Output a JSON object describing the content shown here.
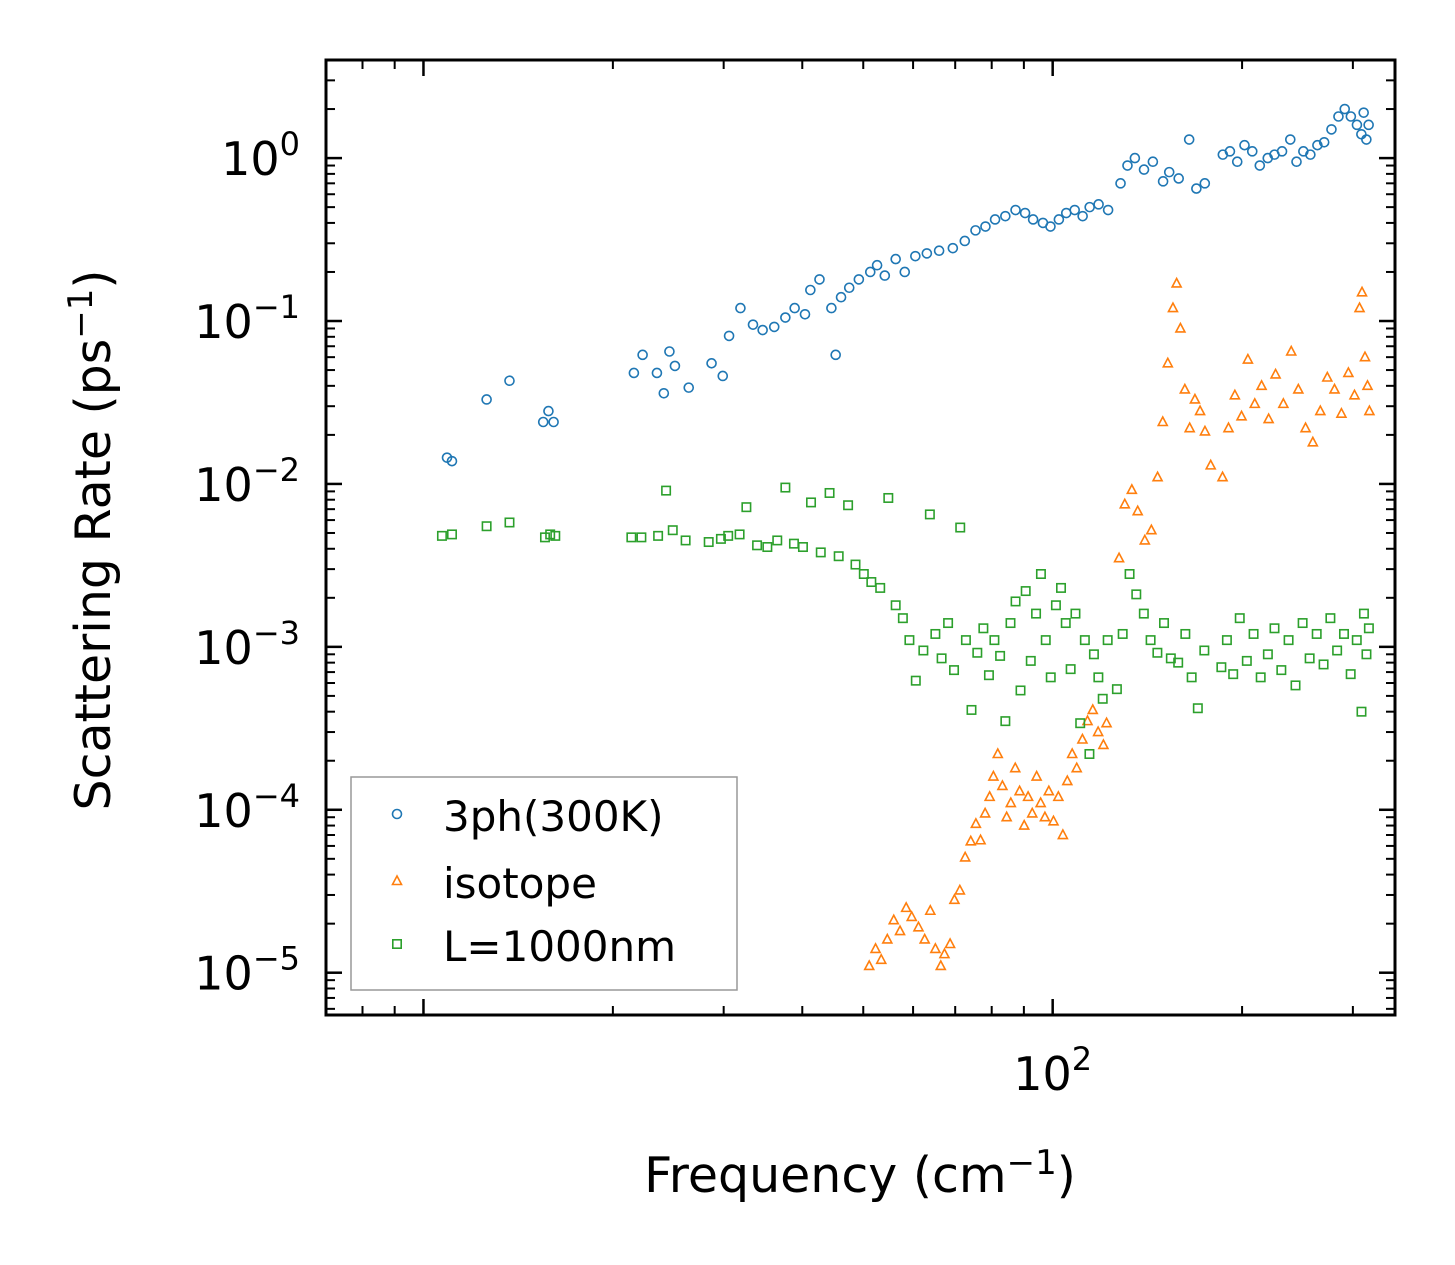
{
  "chart_data": {
    "type": "scatter",
    "xscale": "log",
    "yscale": "log",
    "xlabel": "Frequency (cm",
    "xlabel_sup": "−1",
    "xlabel_end": ")",
    "ylabel": "Scattering Rate (ps",
    "ylabel_sup": "−1",
    "ylabel_end": ")",
    "xlim": [
      7,
      350
    ],
    "ylim": [
      5.5e-06,
      4
    ],
    "x_ticks": [
      {
        "value": 100,
        "base": "10",
        "exp": "2"
      }
    ],
    "y_ticks": [
      {
        "value": 1,
        "base": "10",
        "exp": "0"
      },
      {
        "value": 0.1,
        "base": "10",
        "exp": "−1"
      },
      {
        "value": 0.01,
        "base": "10",
        "exp": "−2"
      },
      {
        "value": 0.001,
        "base": "10",
        "exp": "−3"
      },
      {
        "value": 0.0001,
        "base": "10",
        "exp": "−4"
      },
      {
        "value": 1e-05,
        "base": "10",
        "exp": "−5"
      }
    ],
    "legend_position": "lower-left",
    "series": [
      {
        "name": "3ph(300K)",
        "marker": "circle",
        "color": "#1f77b4",
        "points": [
          [
            10.9,
            0.0145
          ],
          [
            11.1,
            0.0138
          ],
          [
            12.6,
            0.033
          ],
          [
            13.7,
            0.043
          ],
          [
            15.5,
            0.024
          ],
          [
            15.8,
            0.028
          ],
          [
            16.1,
            0.024
          ],
          [
            21.6,
            0.048
          ],
          [
            22.3,
            0.062
          ],
          [
            23.5,
            0.048
          ],
          [
            24.1,
            0.036
          ],
          [
            24.6,
            0.065
          ],
          [
            25.1,
            0.053
          ],
          [
            26.4,
            0.039
          ],
          [
            28.7,
            0.055
          ],
          [
            29.9,
            0.046
          ],
          [
            30.6,
            0.081
          ],
          [
            31.9,
            0.12
          ],
          [
            33.4,
            0.095
          ],
          [
            34.6,
            0.088
          ],
          [
            36.1,
            0.092
          ],
          [
            37.6,
            0.105
          ],
          [
            38.9,
            0.12
          ],
          [
            40.4,
            0.11
          ],
          [
            41.2,
            0.155
          ],
          [
            42.6,
            0.18
          ],
          [
            44.5,
            0.12
          ],
          [
            45.2,
            0.062
          ],
          [
            46.1,
            0.14
          ],
          [
            47.5,
            0.16
          ],
          [
            49.2,
            0.18
          ],
          [
            51.3,
            0.2
          ],
          [
            52.6,
            0.22
          ],
          [
            54.1,
            0.19
          ],
          [
            56.3,
            0.24
          ],
          [
            58.2,
            0.2
          ],
          [
            60.5,
            0.25
          ],
          [
            63.1,
            0.26
          ],
          [
            66,
            0.27
          ],
          [
            69.4,
            0.28
          ],
          [
            72.5,
            0.31
          ],
          [
            75.4,
            0.36
          ],
          [
            78.2,
            0.38
          ],
          [
            81,
            0.42
          ],
          [
            84.1,
            0.44
          ],
          [
            87.3,
            0.48
          ],
          [
            90.4,
            0.46
          ],
          [
            93.1,
            0.42
          ],
          [
            96.5,
            0.4
          ],
          [
            99.2,
            0.38
          ],
          [
            102.3,
            0.42
          ],
          [
            105.1,
            0.46
          ],
          [
            108.4,
            0.48
          ],
          [
            111.6,
            0.44
          ],
          [
            114.5,
            0.5
          ],
          [
            118.3,
            0.52
          ],
          [
            122.5,
            0.48
          ],
          [
            128.2,
            0.7
          ],
          [
            131.5,
            0.9
          ],
          [
            135.1,
            1.0
          ],
          [
            139.7,
            0.85
          ],
          [
            144.3,
            0.95
          ],
          [
            149.8,
            0.72
          ],
          [
            153.2,
            0.82
          ],
          [
            158.6,
            0.75
          ],
          [
            164.8,
            1.3
          ],
          [
            169.2,
            0.65
          ],
          [
            174.5,
            0.7
          ],
          [
            186.4,
            1.05
          ],
          [
            191.3,
            1.1
          ],
          [
            196.5,
            0.95
          ],
          [
            201.8,
            1.2
          ],
          [
            207.6,
            1.1
          ],
          [
            213.4,
            0.9
          ],
          [
            219.7,
            1.0
          ],
          [
            225.2,
            1.05
          ],
          [
            231.5,
            1.1
          ],
          [
            238.6,
            1.3
          ],
          [
            244.1,
            0.95
          ],
          [
            250.3,
            1.1
          ],
          [
            256.8,
            1.05
          ],
          [
            263.5,
            1.2
          ],
          [
            270.1,
            1.25
          ],
          [
            277.4,
            1.5
          ],
          [
            284.6,
            1.8
          ],
          [
            291.2,
            2.0
          ],
          [
            297.8,
            1.8
          ],
          [
            304.5,
            1.6
          ],
          [
            309.5,
            1.4
          ],
          [
            312.1,
            1.9
          ],
          [
            315.2,
            1.3
          ],
          [
            317.8,
            1.6
          ]
        ]
      },
      {
        "name": "isotope",
        "marker": "triangle",
        "color": "#ff7f0e",
        "points": [
          [
            51.1,
            1.1e-05
          ],
          [
            52.3,
            1.4e-05
          ],
          [
            53.4,
            1.2e-05
          ],
          [
            54.6,
            1.6e-05
          ],
          [
            55.9,
            2.1e-05
          ],
          [
            57.2,
            1.8e-05
          ],
          [
            58.5,
            2.5e-05
          ],
          [
            59.7,
            2.2e-05
          ],
          [
            61.2,
            1.9e-05
          ],
          [
            62.6,
            1.6e-05
          ],
          [
            63.9,
            2.4e-05
          ],
          [
            65.1,
            1.4e-05
          ],
          [
            66.4,
            1.1e-05
          ],
          [
            67.3,
            1.3e-05
          ],
          [
            68.7,
            1.5e-05
          ],
          [
            69.8,
            2.8e-05
          ],
          [
            71.2,
            3.2e-05
          ],
          [
            72.6,
            5.1e-05
          ],
          [
            74.1,
            6.4e-05
          ],
          [
            75.5,
            8.2e-05
          ],
          [
            76.8,
            6.5e-05
          ],
          [
            78.1,
            9.5e-05
          ],
          [
            79.4,
            0.00012
          ],
          [
            80.5,
            0.00016
          ],
          [
            81.8,
            0.00022
          ],
          [
            83.2,
            0.00014
          ],
          [
            84.5,
            9e-05
          ],
          [
            85.8,
            0.00011
          ],
          [
            87.2,
            0.00018
          ],
          [
            88.6,
            0.00013
          ],
          [
            90.1,
            8e-05
          ],
          [
            91.4,
            0.00012
          ],
          [
            92.8,
            9.5e-05
          ],
          [
            94.3,
            0.00016
          ],
          [
            95.7,
            0.00011
          ],
          [
            97.2,
            9e-05
          ],
          [
            98.6,
            0.00013
          ],
          [
            100.3,
            8.5e-05
          ],
          [
            102.1,
            0.00012
          ],
          [
            103.8,
            7e-05
          ],
          [
            105.5,
            0.00015
          ],
          [
            107.4,
            0.00022
          ],
          [
            109.2,
            0.00018
          ],
          [
            111.5,
            0.00027
          ],
          [
            113.6,
            0.00035
          ],
          [
            115.8,
            0.00041
          ],
          [
            118.1,
            0.0003
          ],
          [
            120.4,
            0.00025
          ],
          [
            121.8,
            0.00034
          ],
          [
            127.5,
            0.0035
          ],
          [
            130.2,
            0.0075
          ],
          [
            133.6,
            0.0092
          ],
          [
            136.5,
            0.0068
          ],
          [
            140.1,
            0.0045
          ],
          [
            143.5,
            0.0052
          ],
          [
            146.8,
            0.011
          ],
          [
            149.6,
            0.024
          ],
          [
            152.4,
            0.055
          ],
          [
            155.3,
            0.12
          ],
          [
            157.4,
            0.17
          ],
          [
            159.6,
            0.09
          ],
          [
            162.2,
            0.038
          ],
          [
            165.1,
            0.022
          ],
          [
            168.3,
            0.033
          ],
          [
            171.5,
            0.028
          ],
          [
            174.6,
            0.021
          ],
          [
            178.3,
            0.013
          ],
          [
            186.2,
            0.011
          ],
          [
            190.3,
            0.022
          ],
          [
            194.8,
            0.035
          ],
          [
            199.6,
            0.026
          ],
          [
            204.3,
            0.058
          ],
          [
            209.5,
            0.031
          ],
          [
            214.8,
            0.04
          ],
          [
            220.4,
            0.025
          ],
          [
            226.1,
            0.047
          ],
          [
            232.6,
            0.031
          ],
          [
            239.4,
            0.065
          ],
          [
            245.7,
            0.038
          ],
          [
            252.3,
            0.022
          ],
          [
            259.1,
            0.018
          ],
          [
            266.3,
            0.028
          ],
          [
            273.2,
            0.045
          ],
          [
            280.5,
            0.038
          ],
          [
            287.7,
            0.027
          ],
          [
            295.1,
            0.048
          ],
          [
            301.8,
            0.035
          ],
          [
            307.4,
            0.12
          ],
          [
            310.2,
            0.15
          ],
          [
            313.6,
            0.06
          ],
          [
            316.5,
            0.04
          ],
          [
            318.7,
            0.028
          ]
        ]
      },
      {
        "name": "L=1000nm",
        "marker": "square",
        "color": "#2ca02c",
        "points": [
          [
            10.7,
            0.0048
          ],
          [
            11.1,
            0.0049
          ],
          [
            12.6,
            0.0055
          ],
          [
            13.7,
            0.0058
          ],
          [
            15.6,
            0.0047
          ],
          [
            15.9,
            0.0049
          ],
          [
            16.2,
            0.0048
          ],
          [
            21.4,
            0.0047
          ],
          [
            22.2,
            0.0047
          ],
          [
            23.6,
            0.0048
          ],
          [
            24.3,
            0.0091
          ],
          [
            24.9,
            0.0052
          ],
          [
            26.1,
            0.0045
          ],
          [
            28.4,
            0.0044
          ],
          [
            29.7,
            0.0046
          ],
          [
            30.5,
            0.0048
          ],
          [
            31.8,
            0.0049
          ],
          [
            32.6,
            0.0072
          ],
          [
            33.9,
            0.0042
          ],
          [
            35.2,
            0.0041
          ],
          [
            36.5,
            0.0045
          ],
          [
            37.6,
            0.0095
          ],
          [
            38.8,
            0.0043
          ],
          [
            40.1,
            0.0041
          ],
          [
            41.3,
            0.0077
          ],
          [
            42.8,
            0.0038
          ],
          [
            44.2,
            0.0088
          ],
          [
            45.7,
            0.0036
          ],
          [
            47.3,
            0.0074
          ],
          [
            48.6,
            0.0032
          ],
          [
            50.1,
            0.0028
          ],
          [
            51.5,
            0.0025
          ],
          [
            53.2,
            0.0023
          ],
          [
            54.8,
            0.0082
          ],
          [
            56.3,
            0.0018
          ],
          [
            57.8,
            0.0015
          ],
          [
            59.2,
            0.0011
          ],
          [
            60.6,
            0.00062
          ],
          [
            62.3,
            0.00095
          ],
          [
            63.8,
            0.0065
          ],
          [
            65.1,
            0.0012
          ],
          [
            66.6,
            0.00085
          ],
          [
            68.2,
            0.0014
          ],
          [
            69.7,
            0.00072
          ],
          [
            71.3,
            0.0054
          ],
          [
            72.8,
            0.0011
          ],
          [
            74.3,
            0.00041
          ],
          [
            75.9,
            0.00092
          ],
          [
            77.6,
            0.0013
          ],
          [
            79.2,
            0.00067
          ],
          [
            80.8,
            0.0011
          ],
          [
            82.5,
            0.00088
          ],
          [
            84.1,
            0.00035
          ],
          [
            85.7,
            0.0014
          ],
          [
            87.3,
            0.0019
          ],
          [
            88.9,
            0.00054
          ],
          [
            90.6,
            0.0022
          ],
          [
            92.3,
            0.00082
          ],
          [
            94.1,
            0.0016
          ],
          [
            95.8,
            0.0028
          ],
          [
            97.5,
            0.0011
          ],
          [
            99.3,
            0.00065
          ],
          [
            101.2,
            0.0018
          ],
          [
            103.1,
            0.0023
          ],
          [
            104.9,
            0.0014
          ],
          [
            106.8,
            0.00073
          ],
          [
            108.7,
            0.0016
          ],
          [
            110.6,
            0.00034
          ],
          [
            112.5,
            0.0011
          ],
          [
            114.4,
            0.00022
          ],
          [
            116.3,
            0.0009
          ],
          [
            118.2,
            0.00065
          ],
          [
            120.1,
            0.00048
          ],
          [
            122.3,
            0.0011
          ],
          [
            126.5,
            0.00055
          ],
          [
            129.2,
            0.0012
          ],
          [
            132.5,
            0.0028
          ],
          [
            135.8,
            0.0021
          ],
          [
            139.6,
            0.0016
          ],
          [
            143.1,
            0.0011
          ],
          [
            146.7,
            0.00092
          ],
          [
            150.3,
            0.0014
          ],
          [
            154.1,
            0.00085
          ],
          [
            158.3,
            0.0008
          ],
          [
            162.5,
            0.0012
          ],
          [
            166.3,
            0.00065
          ],
          [
            170.1,
            0.00042
          ],
          [
            174.2,
            0.00095
          ],
          [
            185.4,
            0.00075
          ],
          [
            189.2,
            0.0011
          ],
          [
            193.6,
            0.00068
          ],
          [
            198.3,
            0.0015
          ],
          [
            203.5,
            0.00082
          ],
          [
            208.6,
            0.0012
          ],
          [
            214.1,
            0.00065
          ],
          [
            219.8,
            0.0009
          ],
          [
            225.2,
            0.0013
          ],
          [
            230.9,
            0.00072
          ],
          [
            237.1,
            0.0011
          ],
          [
            243.2,
            0.00058
          ],
          [
            249.6,
            0.0014
          ],
          [
            256.1,
            0.00085
          ],
          [
            262.8,
            0.0012
          ],
          [
            269.5,
            0.00078
          ],
          [
            276.3,
            0.0015
          ],
          [
            283.2,
            0.00095
          ],
          [
            290.4,
            0.0012
          ],
          [
            297.6,
            0.00068
          ],
          [
            304.3,
            0.0011
          ],
          [
            309.6,
            0.0004
          ],
          [
            312.4,
            0.0016
          ],
          [
            315.3,
            0.0009
          ],
          [
            318.1,
            0.0013
          ]
        ]
      }
    ]
  }
}
